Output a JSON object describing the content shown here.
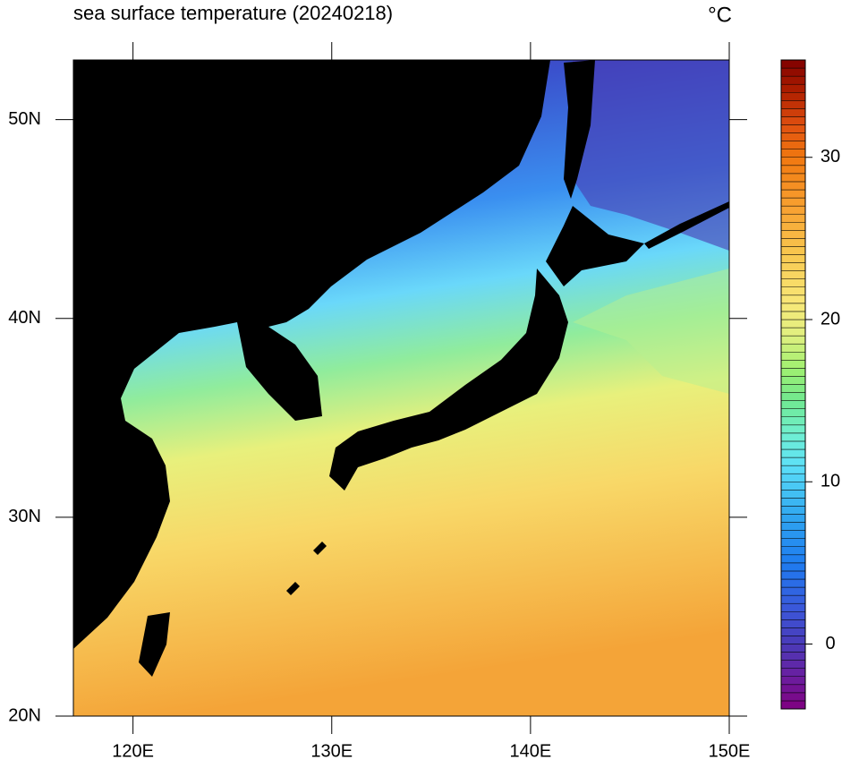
{
  "chart_data": {
    "type": "map",
    "title": "sea surface temperature (20240218)",
    "units": "°C",
    "xlim": [
      117,
      150
    ],
    "ylim": [
      20,
      53
    ],
    "xticks": [
      {
        "value": 120,
        "label": "120E"
      },
      {
        "value": 130,
        "label": "130E"
      },
      {
        "value": 140,
        "label": "140E"
      },
      {
        "value": 150,
        "label": "150E"
      }
    ],
    "yticks": [
      {
        "value": 20,
        "label": "20N"
      },
      {
        "value": 30,
        "label": "30N"
      },
      {
        "value": 40,
        "label": "40N"
      },
      {
        "value": 50,
        "label": "50N"
      }
    ],
    "colorbar": {
      "range": [
        -4,
        36
      ],
      "step": 0.5,
      "ticks": [
        0,
        10,
        20,
        30
      ],
      "stops": [
        {
          "value": -4,
          "color": "#800080"
        },
        {
          "value": -2,
          "color": "#6a1fa0"
        },
        {
          "value": 0,
          "color": "#4a3ab8"
        },
        {
          "value": 2,
          "color": "#3c55d8"
        },
        {
          "value": 5,
          "color": "#1e7cf0"
        },
        {
          "value": 8,
          "color": "#30a8f0"
        },
        {
          "value": 11,
          "color": "#5ce0f8"
        },
        {
          "value": 13,
          "color": "#70f0d0"
        },
        {
          "value": 15,
          "color": "#70e890"
        },
        {
          "value": 17,
          "color": "#a0f070"
        },
        {
          "value": 19,
          "color": "#e0f080"
        },
        {
          "value": 21,
          "color": "#f8e878"
        },
        {
          "value": 24,
          "color": "#f8c850"
        },
        {
          "value": 27,
          "color": "#f8a030"
        },
        {
          "value": 30,
          "color": "#f07810"
        },
        {
          "value": 32,
          "color": "#e05010"
        },
        {
          "value": 34,
          "color": "#b02000"
        },
        {
          "value": 36,
          "color": "#800000"
        }
      ]
    }
  }
}
